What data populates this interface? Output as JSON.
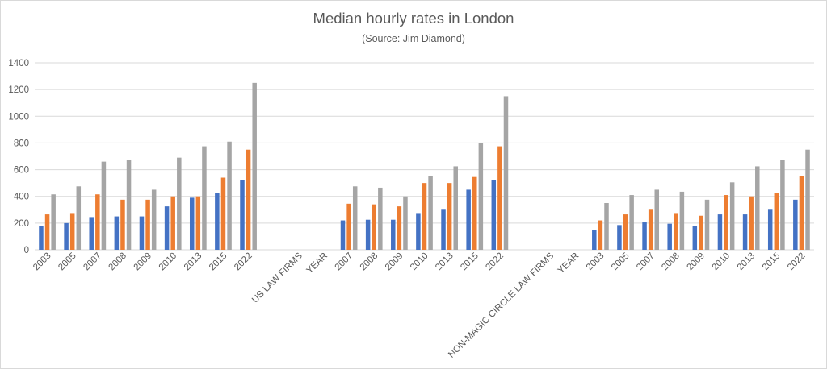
{
  "chart_data": {
    "type": "bar",
    "title": "Median hourly rates in London",
    "subtitle": "(Source: Jim Diamond)",
    "ylim": [
      0,
      1400
    ],
    "yticks": [
      0,
      200,
      400,
      600,
      800,
      1000,
      1200,
      1400
    ],
    "grid": true,
    "legend": "none",
    "colors": [
      "#4472C4",
      "#ED7D31",
      "#A5A5A5"
    ],
    "categories": [
      "2003",
      "2005",
      "2007",
      "2008",
      "2009",
      "2010",
      "2013",
      "2015",
      "2022",
      "",
      "US LAW FIRMS",
      "YEAR",
      "2007",
      "2008",
      "2009",
      "2010",
      "2013",
      "2015",
      "2022",
      "",
      "NON-MAGIC CIRCLE LAW FIRMS",
      "YEAR",
      "2003",
      "2005",
      "2007",
      "2008",
      "2009",
      "2010",
      "2013",
      "2015",
      "2022"
    ],
    "series": [
      {
        "values": [
          180,
          200,
          245,
          250,
          250,
          325,
          390,
          425,
          525,
          null,
          null,
          null,
          220,
          225,
          225,
          275,
          300,
          450,
          525,
          null,
          null,
          null,
          150,
          185,
          205,
          195,
          180,
          265,
          265,
          300,
          375
        ]
      },
      {
        "values": [
          265,
          275,
          415,
          375,
          375,
          400,
          400,
          540,
          750,
          null,
          null,
          null,
          345,
          340,
          325,
          500,
          500,
          545,
          775,
          null,
          null,
          null,
          220,
          265,
          300,
          275,
          255,
          410,
          400,
          425,
          550
        ]
      },
      {
        "values": [
          415,
          475,
          660,
          675,
          450,
          690,
          775,
          810,
          1250,
          null,
          null,
          null,
          475,
          465,
          400,
          550,
          625,
          800,
          1150,
          null,
          null,
          null,
          350,
          410,
          450,
          435,
          375,
          505,
          625,
          675,
          750
        ]
      }
    ]
  }
}
